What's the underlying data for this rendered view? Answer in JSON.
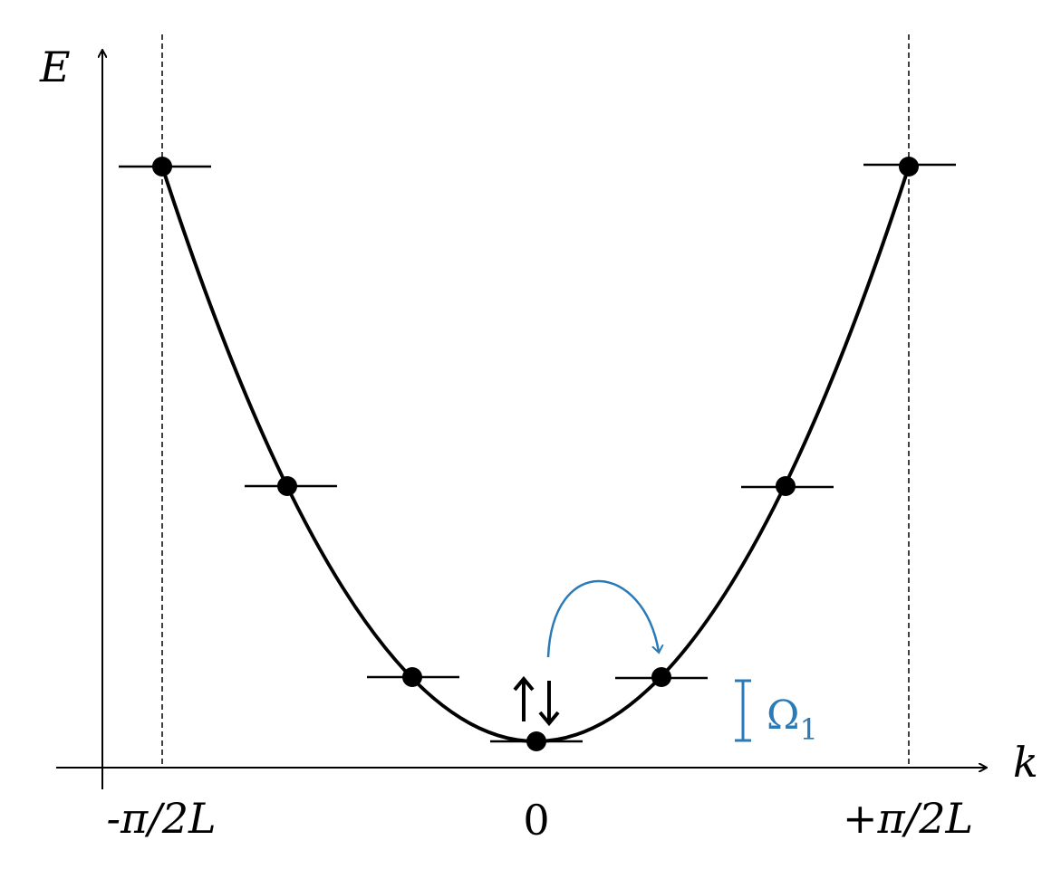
{
  "axes": {
    "y_label": "E",
    "x_label": "k"
  },
  "ticks": [
    "-π/2L",
    "0",
    "+π/2L"
  ],
  "gap_label": {
    "symbol": "Ω",
    "subscript": "1"
  }
}
